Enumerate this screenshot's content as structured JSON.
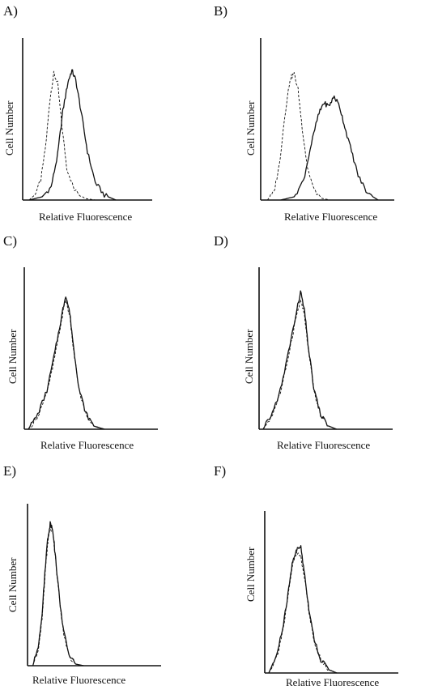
{
  "chart_data": [
    {
      "type": "line",
      "panel": "A)",
      "xlabel": "Relative Fluorescence",
      "ylabel": "Cell Number",
      "xlim": [
        0,
        100
      ],
      "ylim": [
        0,
        100
      ],
      "series": [
        {
          "style": "dashed",
          "x": [
            5,
            9,
            14,
            18,
            21,
            24,
            27,
            30,
            34,
            40,
            48,
            56
          ],
          "y": [
            0,
            3,
            12,
            35,
            62,
            78,
            72,
            48,
            20,
            6,
            1,
            0
          ]
        },
        {
          "style": "solid",
          "x": [
            5,
            15,
            22,
            27,
            31,
            35,
            38,
            41,
            45,
            50,
            56,
            63,
            72
          ],
          "y": [
            0,
            2,
            8,
            28,
            55,
            73,
            80,
            74,
            55,
            30,
            11,
            3,
            0
          ]
        }
      ]
    },
    {
      "type": "line",
      "panel": "B)",
      "xlabel": "Relative Fluorescence",
      "ylabel": "Cell Number",
      "xlim": [
        0,
        100
      ],
      "ylim": [
        0,
        100
      ],
      "series": [
        {
          "style": "dashed",
          "x": [
            5,
            10,
            14,
            18,
            22,
            25,
            28,
            31,
            35,
            40,
            46,
            52
          ],
          "y": [
            0,
            5,
            22,
            52,
            75,
            78,
            68,
            45,
            20,
            6,
            1,
            0
          ]
        },
        {
          "style": "solid",
          "x": [
            15,
            25,
            32,
            38,
            43,
            47,
            51,
            55,
            59,
            63,
            68,
            73,
            80,
            88
          ],
          "y": [
            0,
            2,
            12,
            35,
            52,
            60,
            58,
            64,
            58,
            45,
            30,
            15,
            4,
            0
          ]
        }
      ]
    },
    {
      "type": "line",
      "panel": "C)",
      "xlabel": "Relative Fluorescence",
      "ylabel": "Cell Number",
      "xlim": [
        0,
        100
      ],
      "ylim": [
        0,
        100
      ],
      "series": [
        {
          "style": "dashed",
          "x": [
            3,
            10,
            17,
            23,
            28,
            31,
            34,
            37,
            41,
            46,
            52,
            58
          ],
          "y": [
            0,
            8,
            22,
            45,
            68,
            80,
            70,
            48,
            24,
            9,
            2,
            0
          ]
        },
        {
          "style": "solid",
          "x": [
            3,
            10,
            17,
            23,
            28,
            31,
            34,
            37,
            41,
            46,
            52,
            60
          ],
          "y": [
            0,
            9,
            24,
            48,
            70,
            83,
            72,
            50,
            25,
            10,
            2,
            0
          ]
        }
      ]
    },
    {
      "type": "line",
      "panel": "D)",
      "xlabel": "Relative Fluorescence",
      "ylabel": "Cell Number",
      "xlim": [
        0,
        100
      ],
      "ylim": [
        0,
        100
      ],
      "series": [
        {
          "style": "dashed",
          "x": [
            3,
            10,
            17,
            23,
            28,
            31,
            34,
            37,
            41,
            46,
            52,
            58
          ],
          "y": [
            0,
            9,
            25,
            50,
            70,
            80,
            70,
            48,
            24,
            9,
            2,
            0
          ]
        },
        {
          "style": "solid",
          "x": [
            3,
            10,
            17,
            23,
            28,
            31,
            34,
            37,
            41,
            46,
            52,
            58
          ],
          "y": [
            0,
            10,
            27,
            52,
            72,
            85,
            73,
            50,
            25,
            9,
            2,
            0
          ]
        }
      ]
    },
    {
      "type": "line",
      "panel": "E)",
      "xlabel": "Relative Fluorescence",
      "ylabel": "Cell Number",
      "xlim": [
        0,
        100
      ],
      "ylim": [
        0,
        100
      ],
      "series": [
        {
          "style": "dashed",
          "x": [
            4,
            8,
            11,
            13,
            15,
            17,
            19,
            21,
            24,
            27,
            31,
            36,
            42
          ],
          "y": [
            0,
            10,
            30,
            55,
            75,
            85,
            82,
            65,
            40,
            20,
            6,
            1,
            0
          ]
        },
        {
          "style": "solid",
          "x": [
            4,
            8,
            11,
            13,
            15,
            17,
            19,
            21,
            24,
            27,
            31,
            36,
            42
          ],
          "y": [
            0,
            12,
            33,
            58,
            78,
            88,
            84,
            66,
            41,
            21,
            7,
            1,
            0
          ]
        }
      ]
    },
    {
      "type": "line",
      "panel": "F)",
      "xlabel": "Relative Fluorescence",
      "ylabel": "Cell Number",
      "xlim": [
        0,
        100
      ],
      "ylim": [
        0,
        100
      ],
      "series": [
        {
          "style": "dashed",
          "x": [
            3,
            9,
            14,
            18,
            21,
            24,
            27,
            30,
            33,
            37,
            42,
            48,
            54
          ],
          "y": [
            0,
            10,
            28,
            50,
            68,
            74,
            72,
            58,
            38,
            20,
            8,
            2,
            0
          ]
        },
        {
          "style": "solid",
          "x": [
            3,
            9,
            14,
            18,
            21,
            24,
            27,
            30,
            33,
            37,
            42,
            48,
            54
          ],
          "y": [
            0,
            11,
            30,
            52,
            70,
            76,
            78,
            60,
            40,
            21,
            8,
            2,
            0
          ]
        }
      ]
    }
  ]
}
